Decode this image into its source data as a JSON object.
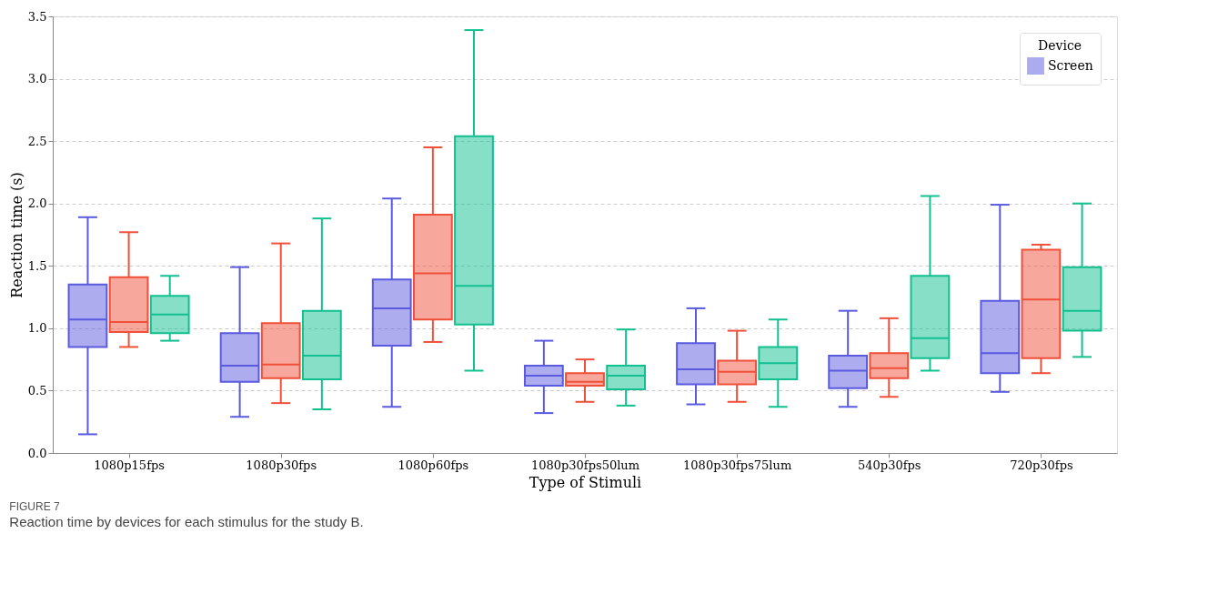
{
  "chart_data": {
    "type": "box",
    "xlabel": "Type of Stimuli",
    "ylabel": "Reaction time (s)",
    "legend_title": "Device",
    "categories": [
      "1080p15fps",
      "1080p30fps",
      "1080p60fps",
      "1080p30fps50lum",
      "1080p30fps75lum",
      "540p30fps",
      "720p30fps"
    ],
    "ylim": [
      0,
      3.5
    ],
    "yticks": [
      {
        "value": 0,
        "label": "0.0"
      },
      0.5,
      {
        "value": 1,
        "label": "1.0"
      },
      1.5,
      {
        "value": 2,
        "label": "2.0"
      },
      2.5,
      {
        "value": 3,
        "label": "3.0"
      },
      3.5
    ],
    "grid": "y",
    "legend": "top right",
    "annotations": [
      "FIGURE 7",
      "Reaction time by devices for each stimulus for the study B."
    ],
    "series": [
      {
        "name": "Screen",
        "color": "#5a5ae0",
        "boxes": [
          {
            "low": 0.15,
            "q1": 0.85,
            "median": 1.07,
            "q3": 1.35,
            "high": 1.89
          },
          {
            "low": 0.29,
            "q1": 0.57,
            "median": 0.7,
            "q3": 0.96,
            "high": 1.49
          },
          {
            "low": 0.37,
            "q1": 0.86,
            "median": 1.16,
            "q3": 1.39,
            "high": 2.04
          },
          {
            "low": 0.32,
            "q1": 0.54,
            "median": 0.62,
            "q3": 0.7,
            "high": 0.9
          },
          {
            "low": 0.39,
            "q1": 0.55,
            "median": 0.67,
            "q3": 0.88,
            "high": 1.16
          },
          {
            "low": 0.37,
            "q1": 0.52,
            "median": 0.66,
            "q3": 0.78,
            "high": 1.14
          },
          {
            "low": 0.49,
            "q1": 0.64,
            "median": 0.8,
            "q3": 1.22,
            "high": 1.99
          }
        ]
      },
      {
        "color": "#f0503a",
        "boxes": [
          {
            "low": 0.85,
            "q1": 0.97,
            "median": 1.05,
            "q3": 1.41,
            "high": 1.77
          },
          {
            "low": 0.4,
            "q1": 0.6,
            "median": 0.71,
            "q3": 1.04,
            "high": 1.68
          },
          {
            "low": 0.89,
            "q1": 1.07,
            "median": 1.44,
            "q3": 1.91,
            "high": 2.45
          },
          {
            "low": 0.41,
            "q1": 0.54,
            "median": 0.57,
            "q3": 0.64,
            "high": 0.75
          },
          {
            "low": 0.41,
            "q1": 0.55,
            "median": 0.65,
            "q3": 0.74,
            "high": 0.98
          },
          {
            "low": 0.45,
            "q1": 0.6,
            "median": 0.68,
            "q3": 0.8,
            "high": 1.08
          },
          {
            "low": 0.64,
            "q1": 0.76,
            "median": 1.23,
            "q3": 1.63,
            "high": 1.67
          }
        ]
      },
      {
        "color": "#10c090",
        "boxes": [
          {
            "low": 0.9,
            "q1": 0.96,
            "median": 1.11,
            "q3": 1.26,
            "high": 1.42
          },
          {
            "low": 0.35,
            "q1": 0.59,
            "median": 0.78,
            "q3": 1.14,
            "high": 1.88
          },
          {
            "low": 0.66,
            "q1": 1.03,
            "median": 1.34,
            "q3": 2.54,
            "high": 3.39
          },
          {
            "low": 0.38,
            "q1": 0.51,
            "median": 0.62,
            "q3": 0.7,
            "high": 0.99
          },
          {
            "low": 0.37,
            "q1": 0.59,
            "median": 0.72,
            "q3": 0.85,
            "high": 1.07
          },
          {
            "low": 0.66,
            "q1": 0.76,
            "median": 0.92,
            "q3": 1.42,
            "high": 2.06
          },
          {
            "low": 0.77,
            "q1": 0.98,
            "median": 1.14,
            "q3": 1.49,
            "high": 2.0
          }
        ]
      }
    ]
  }
}
